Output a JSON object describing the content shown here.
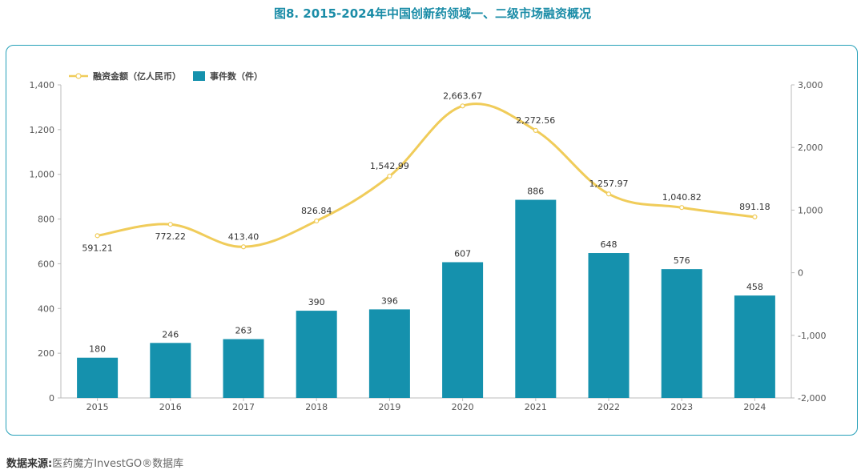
{
  "figure": {
    "title": "图8. 2015-2024年中国创新药领域一、二级市场融资概况"
  },
  "source": {
    "label": "数据来源:",
    "text": "医药魔方InvestGO®数据库"
  },
  "colors": {
    "bar": "#1591ad",
    "line": "#f0cc5a",
    "title": "#1a8ca7",
    "border": "#25a0b8"
  },
  "chart_data": {
    "type": "bar",
    "categories": [
      "2015",
      "2016",
      "2017",
      "2018",
      "2019",
      "2020",
      "2021",
      "2022",
      "2023",
      "2024"
    ],
    "series": [
      {
        "name": "事件数（件）",
        "type": "bar",
        "axis": "left",
        "values": [
          180,
          246,
          263,
          390,
          396,
          607,
          886,
          648,
          576,
          458
        ],
        "labels": [
          "180",
          "246",
          "263",
          "390",
          "396",
          "607",
          "886",
          "648",
          "576",
          "458"
        ]
      },
      {
        "name": "融资金额（亿人民币）",
        "type": "line",
        "axis": "right",
        "values": [
          591.21,
          772.22,
          413.4,
          826.84,
          1542.99,
          2663.67,
          2272.56,
          1257.97,
          1040.82,
          891.18
        ],
        "labels": [
          "591.21",
          "772.22",
          "413.40",
          "826.84",
          "1,542.99",
          "2,663.67",
          "2,272.56",
          "1,257.97",
          "1,040.82",
          "891.18"
        ]
      }
    ],
    "ylim_left": [
      0,
      1400
    ],
    "yticks_left": [
      "0",
      "200",
      "400",
      "600",
      "800",
      "1,000",
      "1,200",
      "1,400"
    ],
    "ylim_right": [
      -2000,
      3000
    ],
    "yticks_right": [
      "-2,000",
      "-1,000",
      "0",
      "1,000",
      "2,000",
      "3,000"
    ],
    "legend_position": "top-left",
    "grid": false
  }
}
